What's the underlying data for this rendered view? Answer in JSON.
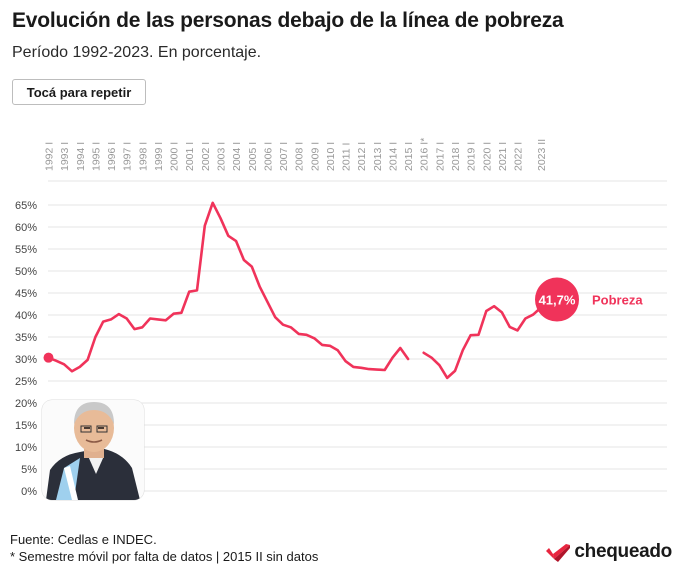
{
  "header": {
    "title": "Evolución de las personas debajo de la línea de pobreza",
    "subtitle": "Período 1992-2023. En porcentaje.",
    "replay_label": "Tocá para repetir"
  },
  "footer": {
    "source": "Fuente: Cedlas e INDEC.",
    "note": "* Semestre móvil por falta de datos | 2015 II sin datos",
    "logo_text": "chequeado"
  },
  "colors": {
    "line": "#f0335a",
    "logo_red": "#e8253f",
    "logo_dark": "#1a1a1a"
  },
  "icons": {
    "president_photo": "president-photo",
    "logo": "chequeado-logo-icon"
  },
  "chart_data": {
    "type": "line",
    "title": "Evolución de las personas debajo de la línea de pobreza",
    "ylim": [
      0,
      65
    ],
    "yticks": [
      "0%",
      "5%",
      "10%",
      "15%",
      "20%",
      "25%",
      "30%",
      "35%",
      "40%",
      "45%",
      "50%",
      "55%",
      "60%",
      "65%"
    ],
    "xticks": [
      "1992 I",
      "1993 I",
      "1994 I",
      "1995 I",
      "1996 I",
      "1997 I",
      "1998 I",
      "1999 I",
      "2000 I",
      "2001 I",
      "2002 I",
      "2003 I",
      "2004 I",
      "2005 I",
      "2006 I",
      "2007 I",
      "2008 I",
      "2009 I",
      "2010 I",
      "2011 I",
      "2012 I",
      "2013 I",
      "2014 I",
      "2015 I",
      "2016 I*",
      "2017 I",
      "2018 I",
      "2019 I",
      "2020 I",
      "2021 I",
      "2022 I",
      "2023 II"
    ],
    "grid": true,
    "series": [
      {
        "name": "Pobreza",
        "x": [
          "1992 I",
          "1992 II",
          "1993 I",
          "1993 II",
          "1994 I",
          "1994 II",
          "1995 I",
          "1995 II",
          "1996 I",
          "1996 II",
          "1997 I",
          "1997 II",
          "1998 I",
          "1998 II",
          "1999 I",
          "1999 II",
          "2000 I",
          "2000 II",
          "2001 I",
          "2001 II",
          "2002 I",
          "2002 II",
          "2003 I",
          "2003 II",
          "2004 I",
          "2004 II",
          "2005 I",
          "2005 II",
          "2006 I",
          "2006 II",
          "2007 I",
          "2007 II",
          "2008 I",
          "2008 II",
          "2009 I",
          "2009 II",
          "2010 I",
          "2010 II",
          "2011 I",
          "2011 II",
          "2012 I",
          "2012 II",
          "2013 I",
          "2013 II",
          "2014 I",
          "2014 II",
          "2015 I",
          "2015 II",
          "2016 I*",
          "2016 II",
          "2017 I",
          "2017 II",
          "2018 I",
          "2018 II",
          "2019 I",
          "2019 II",
          "2020 I",
          "2020 II",
          "2021 I",
          "2021 II",
          "2022 I",
          "2022 II",
          "2023 I",
          "2023 II"
        ],
        "values": [
          30.3,
          29.6,
          28.8,
          27.2,
          28.2,
          29.8,
          35.0,
          38.5,
          39.0,
          40.2,
          39.2,
          36.8,
          37.2,
          39.2,
          39.0,
          38.8,
          40.3,
          40.5,
          45.3,
          45.6,
          60.3,
          65.5,
          62.0,
          58.0,
          56.8,
          52.5,
          51.0,
          46.5,
          43.0,
          39.5,
          37.8,
          37.2,
          35.7,
          35.5,
          34.7,
          33.2,
          33.0,
          32.0,
          29.5,
          28.2,
          28.0,
          27.7,
          27.6,
          27.5,
          30.3,
          32.5,
          30.0,
          null,
          31.4,
          30.3,
          28.6,
          25.7,
          27.3,
          32.0,
          35.4,
          35.5,
          40.9,
          42.0,
          40.6,
          37.3,
          36.5,
          39.2,
          40.1,
          41.7
        ]
      }
    ],
    "end_label": {
      "value": "41,7%",
      "series": "Pobreza"
    }
  }
}
